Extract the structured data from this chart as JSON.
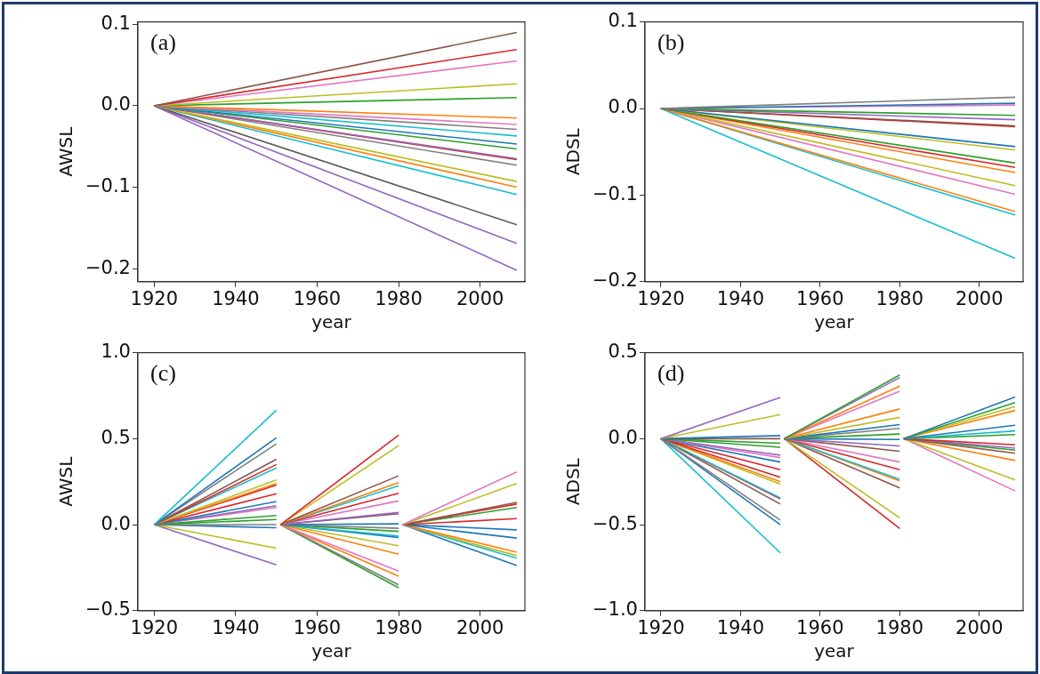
{
  "chart_data": [
    {
      "type": "line",
      "xlabel": "year",
      "ylabel": "AWSL",
      "annotations": [
        "(a)"
      ],
      "xlim": [
        1916,
        2011
      ],
      "xticks": [
        1920,
        1940,
        1960,
        1980,
        2000
      ],
      "ylim": [
        -0.216,
        0.103
      ],
      "yticks": [
        {
          "value": -0.2,
          "label": "−0.2"
        },
        {
          "value": -0.1,
          "label": "−0.1"
        },
        {
          "value": 0,
          "label": "0.0"
        },
        {
          "value": 0.1,
          "label": "0.1"
        }
      ],
      "grid": false,
      "legend": false,
      "series": [
        {
          "color": "#8c564b",
          "x": [
            1920,
            2009
          ],
          "values": [
            0,
            0.09
          ]
        },
        {
          "color": "#d62728",
          "x": [
            1920,
            2009
          ],
          "values": [
            0,
            0.069
          ]
        },
        {
          "color": "#e377c2",
          "x": [
            1920,
            2009
          ],
          "values": [
            0,
            0.055
          ]
        },
        {
          "color": "#bcbd22",
          "x": [
            1920,
            2009
          ],
          "values": [
            0,
            0.027
          ]
        },
        {
          "color": "#2ca02c",
          "x": [
            1920,
            2009
          ],
          "values": [
            0,
            0.01
          ]
        },
        {
          "color": "#ff7f0e",
          "x": [
            1920,
            2009
          ],
          "values": [
            0,
            -0.015
          ]
        },
        {
          "color": "#e377c2",
          "x": [
            1920,
            2009
          ],
          "values": [
            0,
            -0.023
          ]
        },
        {
          "color": "#7f7f7f",
          "x": [
            1920,
            2009
          ],
          "values": [
            0,
            -0.029
          ]
        },
        {
          "color": "#17becf",
          "x": [
            1920,
            2009
          ],
          "values": [
            0,
            -0.037
          ]
        },
        {
          "color": "#1f77b4",
          "x": [
            1920,
            2009
          ],
          "values": [
            0,
            -0.047
          ]
        },
        {
          "color": "#2ca02c",
          "x": [
            1920,
            2009
          ],
          "values": [
            0,
            -0.053
          ]
        },
        {
          "color": "#9467bd",
          "x": [
            1920,
            2009
          ],
          "values": [
            0,
            -0.065
          ]
        },
        {
          "color": "#d62728",
          "x": [
            1920,
            2009
          ],
          "values": [
            0,
            -0.066
          ]
        },
        {
          "color": "#7f7f7f",
          "x": [
            1920,
            2009
          ],
          "values": [
            0,
            -0.073
          ]
        },
        {
          "color": "#bcbd22",
          "x": [
            1920,
            2009
          ],
          "values": [
            0,
            -0.093
          ]
        },
        {
          "color": "#ff7f0e",
          "x": [
            1920,
            2009
          ],
          "values": [
            0,
            -0.1
          ]
        },
        {
          "color": "#17becf",
          "x": [
            1920,
            2009
          ],
          "values": [
            0,
            -0.109
          ]
        },
        {
          "color": "#595959",
          "x": [
            1920,
            2009
          ],
          "values": [
            0,
            -0.146
          ]
        },
        {
          "color": "#9467bd",
          "x": [
            1920,
            2009
          ],
          "values": [
            0,
            -0.169
          ]
        },
        {
          "color": "#9467bd",
          "x": [
            1920,
            2009
          ],
          "values": [
            0,
            -0.202
          ]
        }
      ]
    },
    {
      "type": "line",
      "xlabel": "year",
      "ylabel": "ADSL",
      "annotations": [
        "(b)"
      ],
      "xlim": [
        1916,
        2011
      ],
      "xticks": [
        1920,
        1940,
        1960,
        1980,
        2000
      ],
      "ylim": [
        -0.2,
        0.1
      ],
      "yticks": [
        {
          "value": -0.2,
          "label": "−0.2"
        },
        {
          "value": -0.1,
          "label": "−0.1"
        },
        {
          "value": 0,
          "label": "0.0"
        },
        {
          "value": 0.1,
          "label": "0.1"
        }
      ],
      "grid": false,
      "legend": false,
      "series": [
        {
          "color": "#7f7f7f",
          "x": [
            1920,
            2009
          ],
          "values": [
            0,
            0.013
          ]
        },
        {
          "color": "#1f77b4",
          "x": [
            1920,
            2009
          ],
          "values": [
            0,
            0.006
          ]
        },
        {
          "color": "#e377c2",
          "x": [
            1920,
            2009
          ],
          "values": [
            0,
            0.004
          ]
        },
        {
          "color": "#2ca02c",
          "x": [
            1920,
            2009
          ],
          "values": [
            0,
            -0.008
          ]
        },
        {
          "color": "#9467bd",
          "x": [
            1920,
            2009
          ],
          "values": [
            0,
            -0.013
          ]
        },
        {
          "color": "#8c564b",
          "x": [
            1920,
            2009
          ],
          "values": [
            0,
            -0.02
          ]
        },
        {
          "color": "#d62728",
          "x": [
            1920,
            2009
          ],
          "values": [
            0,
            -0.021
          ]
        },
        {
          "color": "#1f77b4",
          "x": [
            1920,
            2009
          ],
          "values": [
            0,
            -0.044
          ]
        },
        {
          "color": "#bcbd22",
          "x": [
            1920,
            2009
          ],
          "values": [
            0,
            -0.048
          ]
        },
        {
          "color": "#2ca02c",
          "x": [
            1920,
            2009
          ],
          "values": [
            0,
            -0.063
          ]
        },
        {
          "color": "#d62728",
          "x": [
            1920,
            2009
          ],
          "values": [
            0,
            -0.068
          ]
        },
        {
          "color": "#ff7f0e",
          "x": [
            1920,
            2009
          ],
          "values": [
            0,
            -0.074
          ]
        },
        {
          "color": "#bcbd22",
          "x": [
            1920,
            2009
          ],
          "values": [
            0,
            -0.089
          ]
        },
        {
          "color": "#e377c2",
          "x": [
            1920,
            2009
          ],
          "values": [
            0,
            -0.099
          ]
        },
        {
          "color": "#ff7f0e",
          "x": [
            1920,
            2009
          ],
          "values": [
            0,
            -0.119
          ]
        },
        {
          "color": "#17becf",
          "x": [
            1920,
            2009
          ],
          "values": [
            0,
            -0.123
          ]
        },
        {
          "color": "#17becf",
          "x": [
            1920,
            2009
          ],
          "values": [
            0,
            -0.173
          ]
        }
      ]
    },
    {
      "type": "line",
      "xlabel": "year",
      "ylabel": "AWSL",
      "annotations": [
        "(c)"
      ],
      "xlim": [
        1916,
        2011
      ],
      "xticks": [
        1920,
        1940,
        1960,
        1980,
        2000
      ],
      "ylim": [
        -0.5,
        1.0
      ],
      "yticks": [
        {
          "value": -0.5,
          "label": "−0.5"
        },
        {
          "value": 0,
          "label": "0.0"
        },
        {
          "value": 0.5,
          "label": "0.5"
        },
        {
          "value": 1,
          "label": "1.0"
        }
      ],
      "grid": false,
      "legend": false,
      "series": [
        {
          "color": "#17becf",
          "x": [
            1920,
            1950
          ],
          "values": [
            0,
            0.665
          ]
        },
        {
          "color": "#1f77b4",
          "x": [
            1920,
            1950
          ],
          "values": [
            0,
            0.505
          ]
        },
        {
          "color": "#7f7f7f",
          "x": [
            1920,
            1950
          ],
          "values": [
            0,
            0.47
          ]
        },
        {
          "color": "#8c564b",
          "x": [
            1920,
            1950
          ],
          "values": [
            0,
            0.38
          ]
        },
        {
          "color": "#d62728",
          "x": [
            1920,
            1950
          ],
          "values": [
            0,
            0.35
          ]
        },
        {
          "color": "#17becf",
          "x": [
            1920,
            1950
          ],
          "values": [
            0,
            0.33
          ]
        },
        {
          "color": "#bcbd22",
          "x": [
            1920,
            1950
          ],
          "values": [
            0,
            0.26
          ]
        },
        {
          "color": "#ff7f0e",
          "x": [
            1920,
            1950
          ],
          "values": [
            0,
            0.24
          ]
        },
        {
          "color": "#d62728",
          "x": [
            1920,
            1950
          ],
          "values": [
            0,
            0.23
          ]
        },
        {
          "color": "#d62728",
          "x": [
            1920,
            1950
          ],
          "values": [
            0,
            0.18
          ]
        },
        {
          "color": "#1f77b4",
          "x": [
            1920,
            1950
          ],
          "values": [
            0,
            0.135
          ]
        },
        {
          "color": "#9467bd",
          "x": [
            1920,
            1950
          ],
          "values": [
            0,
            0.11
          ]
        },
        {
          "color": "#e377c2",
          "x": [
            1920,
            1950
          ],
          "values": [
            0,
            0.1
          ]
        },
        {
          "color": "#2ca02c",
          "x": [
            1920,
            1950
          ],
          "values": [
            0,
            0.053
          ]
        },
        {
          "color": "#2ca02c",
          "x": [
            1920,
            1950
          ],
          "values": [
            0,
            0.03
          ]
        },
        {
          "color": "#7f7f7f",
          "x": [
            1920,
            1950
          ],
          "values": [
            0,
            0
          ]
        },
        {
          "color": "#1f77b4",
          "x": [
            1920,
            1950
          ],
          "values": [
            0,
            -0.018
          ]
        },
        {
          "color": "#bcbd22",
          "x": [
            1920,
            1950
          ],
          "values": [
            0,
            -0.137
          ]
        },
        {
          "color": "#9467bd",
          "x": [
            1920,
            1950
          ],
          "values": [
            0,
            -0.234
          ]
        },
        {
          "color": "#d62728",
          "x": [
            1951,
            1980
          ],
          "values": [
            0,
            0.52
          ]
        },
        {
          "color": "#bcbd22",
          "x": [
            1951,
            1980
          ],
          "values": [
            0,
            0.46
          ]
        },
        {
          "color": "#8c564b",
          "x": [
            1951,
            1980
          ],
          "values": [
            0,
            0.284
          ]
        },
        {
          "color": "#ff7f0e",
          "x": [
            1951,
            1980
          ],
          "values": [
            0,
            0.245
          ]
        },
        {
          "color": "#17becf",
          "x": [
            1951,
            1980
          ],
          "values": [
            0,
            0.227
          ]
        },
        {
          "color": "#d62728",
          "x": [
            1951,
            1980
          ],
          "values": [
            0,
            0.183
          ]
        },
        {
          "color": "#e377c2",
          "x": [
            1951,
            1980
          ],
          "values": [
            0,
            0.138
          ]
        },
        {
          "color": "#9467bd",
          "x": [
            1951,
            1980
          ],
          "values": [
            0,
            0.071
          ]
        },
        {
          "color": "#8c564b",
          "x": [
            1951,
            1980
          ],
          "values": [
            0,
            0.064
          ]
        },
        {
          "color": "#1f77b4",
          "x": [
            1951,
            1980
          ],
          "values": [
            0,
            0.005
          ]
        },
        {
          "color": "#7f7f7f",
          "x": [
            1951,
            1980
          ],
          "values": [
            0,
            -0.021
          ]
        },
        {
          "color": "#2ca02c",
          "x": [
            1951,
            1980
          ],
          "values": [
            0,
            -0.039
          ]
        },
        {
          "color": "#17becf",
          "x": [
            1951,
            1980
          ],
          "values": [
            0,
            -0.066
          ]
        },
        {
          "color": "#1f77b4",
          "x": [
            1951,
            1980
          ],
          "values": [
            0,
            -0.074
          ]
        },
        {
          "color": "#bcbd22",
          "x": [
            1951,
            1980
          ],
          "values": [
            0,
            -0.122
          ]
        },
        {
          "color": "#ff7f0e",
          "x": [
            1951,
            1980
          ],
          "values": [
            0,
            -0.172
          ]
        },
        {
          "color": "#e377c2",
          "x": [
            1951,
            1980
          ],
          "values": [
            0,
            -0.27
          ]
        },
        {
          "color": "#ff7f0e",
          "x": [
            1951,
            1980
          ],
          "values": [
            0,
            -0.3
          ]
        },
        {
          "color": "#7f7f7f",
          "x": [
            1951,
            1980
          ],
          "values": [
            0,
            -0.35
          ]
        },
        {
          "color": "#2ca02c",
          "x": [
            1951,
            1980
          ],
          "values": [
            0,
            -0.367
          ]
        },
        {
          "color": "#e377c2",
          "x": [
            1981,
            2009
          ],
          "values": [
            0,
            0.307
          ]
        },
        {
          "color": "#bcbd22",
          "x": [
            1981,
            2009
          ],
          "values": [
            0,
            0.24
          ]
        },
        {
          "color": "#8c564b",
          "x": [
            1981,
            2009
          ],
          "values": [
            0,
            0.13
          ]
        },
        {
          "color": "#d62728",
          "x": [
            1981,
            2009
          ],
          "values": [
            0,
            0.12
          ]
        },
        {
          "color": "#2ca02c",
          "x": [
            1981,
            2009
          ],
          "values": [
            0,
            0.1
          ]
        },
        {
          "color": "#d62728",
          "x": [
            1981,
            2009
          ],
          "values": [
            0,
            0.035
          ]
        },
        {
          "color": "#1f77b4",
          "x": [
            1981,
            2009
          ],
          "values": [
            0,
            -0.03
          ]
        },
        {
          "color": "#1f77b4",
          "x": [
            1981,
            2009
          ],
          "values": [
            0,
            -0.078
          ]
        },
        {
          "color": "#ff7f0e",
          "x": [
            1981,
            2009
          ],
          "values": [
            0,
            -0.16
          ]
        },
        {
          "color": "#bcbd22",
          "x": [
            1981,
            2009
          ],
          "values": [
            0,
            -0.18
          ]
        },
        {
          "color": "#17becf",
          "x": [
            1981,
            2009
          ],
          "values": [
            0,
            -0.195
          ]
        },
        {
          "color": "#1f77b4",
          "x": [
            1981,
            2009
          ],
          "values": [
            0,
            -0.238
          ]
        }
      ]
    },
    {
      "type": "line",
      "xlabel": "year",
      "ylabel": "ADSL",
      "annotations": [
        "(d)"
      ],
      "xlim": [
        1916,
        2011
      ],
      "xticks": [
        1920,
        1940,
        1960,
        1980,
        2000
      ],
      "ylim": [
        -1.0,
        0.5
      ],
      "yticks": [
        {
          "value": -1,
          "label": "−1.0"
        },
        {
          "value": -0.5,
          "label": "−0.5"
        },
        {
          "value": 0,
          "label": "0.0"
        },
        {
          "value": 0.5,
          "label": "0.5"
        }
      ],
      "grid": false,
      "legend": false,
      "series": [
        {
          "color": "#9467bd",
          "x": [
            1920,
            1950
          ],
          "values": [
            0,
            0.24
          ]
        },
        {
          "color": "#bcbd22",
          "x": [
            1920,
            1950
          ],
          "values": [
            0,
            0.14
          ]
        },
        {
          "color": "#1f77b4",
          "x": [
            1920,
            1950
          ],
          "values": [
            0,
            0.018
          ]
        },
        {
          "color": "#8c564b",
          "x": [
            1920,
            1950
          ],
          "values": [
            0,
            0
          ]
        },
        {
          "color": "#2ca02c",
          "x": [
            1920,
            1950
          ],
          "values": [
            0,
            -0.027
          ]
        },
        {
          "color": "#2ca02c",
          "x": [
            1920,
            1950
          ],
          "values": [
            0,
            -0.05
          ]
        },
        {
          "color": "#9467bd",
          "x": [
            1920,
            1950
          ],
          "values": [
            0,
            -0.096
          ]
        },
        {
          "color": "#e377c2",
          "x": [
            1920,
            1950
          ],
          "values": [
            0,
            -0.11
          ]
        },
        {
          "color": "#1f77b4",
          "x": [
            1920,
            1950
          ],
          "values": [
            0,
            -0.136
          ]
        },
        {
          "color": "#d62728",
          "x": [
            1920,
            1950
          ],
          "values": [
            0,
            -0.18
          ]
        },
        {
          "color": "#d62728",
          "x": [
            1920,
            1950
          ],
          "values": [
            0,
            -0.224
          ]
        },
        {
          "color": "#ff7f0e",
          "x": [
            1920,
            1950
          ],
          "values": [
            0,
            -0.25
          ]
        },
        {
          "color": "#bcbd22",
          "x": [
            1920,
            1950
          ],
          "values": [
            0,
            -0.264
          ]
        },
        {
          "color": "#17becf",
          "x": [
            1920,
            1950
          ],
          "values": [
            0,
            -0.345
          ]
        },
        {
          "color": "#d62728",
          "x": [
            1920,
            1950
          ],
          "values": [
            0,
            -0.35
          ]
        },
        {
          "color": "#8c564b",
          "x": [
            1920,
            1950
          ],
          "values": [
            0,
            -0.38
          ]
        },
        {
          "color": "#7f7f7f",
          "x": [
            1920,
            1950
          ],
          "values": [
            0,
            -0.473
          ]
        },
        {
          "color": "#1f77b4",
          "x": [
            1920,
            1950
          ],
          "values": [
            0,
            -0.5
          ]
        },
        {
          "color": "#17becf",
          "x": [
            1920,
            1950
          ],
          "values": [
            0,
            -0.664
          ]
        },
        {
          "color": "#2ca02c",
          "x": [
            1951,
            1980
          ],
          "values": [
            0,
            0.37
          ]
        },
        {
          "color": "#9467bd",
          "x": [
            1951,
            1980
          ],
          "values": [
            0,
            0.355
          ]
        },
        {
          "color": "#ff7f0e",
          "x": [
            1951,
            1980
          ],
          "values": [
            0,
            0.305
          ]
        },
        {
          "color": "#e377c2",
          "x": [
            1951,
            1980
          ],
          "values": [
            0,
            0.276
          ]
        },
        {
          "color": "#ff7f0e",
          "x": [
            1951,
            1980
          ],
          "values": [
            0,
            0.173
          ]
        },
        {
          "color": "#bcbd22",
          "x": [
            1951,
            1980
          ],
          "values": [
            0,
            0.124
          ]
        },
        {
          "color": "#1f77b4",
          "x": [
            1951,
            1980
          ],
          "values": [
            0,
            0.082
          ]
        },
        {
          "color": "#7f7f7f",
          "x": [
            1951,
            1980
          ],
          "values": [
            0,
            0.06
          ]
        },
        {
          "color": "#2ca02c",
          "x": [
            1951,
            1980
          ],
          "values": [
            0,
            0.027
          ]
        },
        {
          "color": "#1f77b4",
          "x": [
            1951,
            1980
          ],
          "values": [
            0,
            -0.005
          ]
        },
        {
          "color": "#9467bd",
          "x": [
            1951,
            1980
          ],
          "values": [
            0,
            -0.042
          ]
        },
        {
          "color": "#8c564b",
          "x": [
            1951,
            1980
          ],
          "values": [
            0,
            -0.073
          ]
        },
        {
          "color": "#e377c2",
          "x": [
            1951,
            1980
          ],
          "values": [
            0,
            -0.136
          ]
        },
        {
          "color": "#d62728",
          "x": [
            1951,
            1980
          ],
          "values": [
            0,
            -0.18
          ]
        },
        {
          "color": "#17becf",
          "x": [
            1951,
            1980
          ],
          "values": [
            0,
            -0.236
          ]
        },
        {
          "color": "#ff7f0e",
          "x": [
            1951,
            1980
          ],
          "values": [
            0,
            -0.245
          ]
        },
        {
          "color": "#8c564b",
          "x": [
            1951,
            1980
          ],
          "values": [
            0,
            -0.287
          ]
        },
        {
          "color": "#bcbd22",
          "x": [
            1951,
            1980
          ],
          "values": [
            0,
            -0.46
          ]
        },
        {
          "color": "#d62728",
          "x": [
            1951,
            1980
          ],
          "values": [
            0,
            -0.522
          ]
        },
        {
          "color": "#1f77b4",
          "x": [
            1981,
            2009
          ],
          "values": [
            0,
            0.242
          ]
        },
        {
          "color": "#2ca02c",
          "x": [
            1981,
            2009
          ],
          "values": [
            0,
            0.21
          ]
        },
        {
          "color": "#bcbd22",
          "x": [
            1981,
            2009
          ],
          "values": [
            0,
            0.187
          ]
        },
        {
          "color": "#ff7f0e",
          "x": [
            1981,
            2009
          ],
          "values": [
            0,
            0.164
          ]
        },
        {
          "color": "#1f77b4",
          "x": [
            1981,
            2009
          ],
          "values": [
            0,
            0.078
          ]
        },
        {
          "color": "#17becf",
          "x": [
            1981,
            2009
          ],
          "values": [
            0,
            0.045
          ]
        },
        {
          "color": "#2ca02c",
          "x": [
            1981,
            2009
          ],
          "values": [
            0,
            0.024
          ]
        },
        {
          "color": "#d62728",
          "x": [
            1981,
            2009
          ],
          "values": [
            0,
            -0.036
          ]
        },
        {
          "color": "#9467bd",
          "x": [
            1981,
            2009
          ],
          "values": [
            0,
            -0.055
          ]
        },
        {
          "color": "#2ca02c",
          "x": [
            1981,
            2009
          ],
          "values": [
            0,
            -0.067
          ]
        },
        {
          "color": "#8c564b",
          "x": [
            1981,
            2009
          ],
          "values": [
            0,
            -0.085
          ]
        },
        {
          "color": "#ff7f0e",
          "x": [
            1981,
            2009
          ],
          "values": [
            0,
            -0.127
          ]
        },
        {
          "color": "#bcbd22",
          "x": [
            1981,
            2009
          ],
          "values": [
            0,
            -0.24
          ]
        },
        {
          "color": "#e377c2",
          "x": [
            1981,
            2009
          ],
          "values": [
            0,
            -0.304
          ]
        }
      ]
    }
  ]
}
